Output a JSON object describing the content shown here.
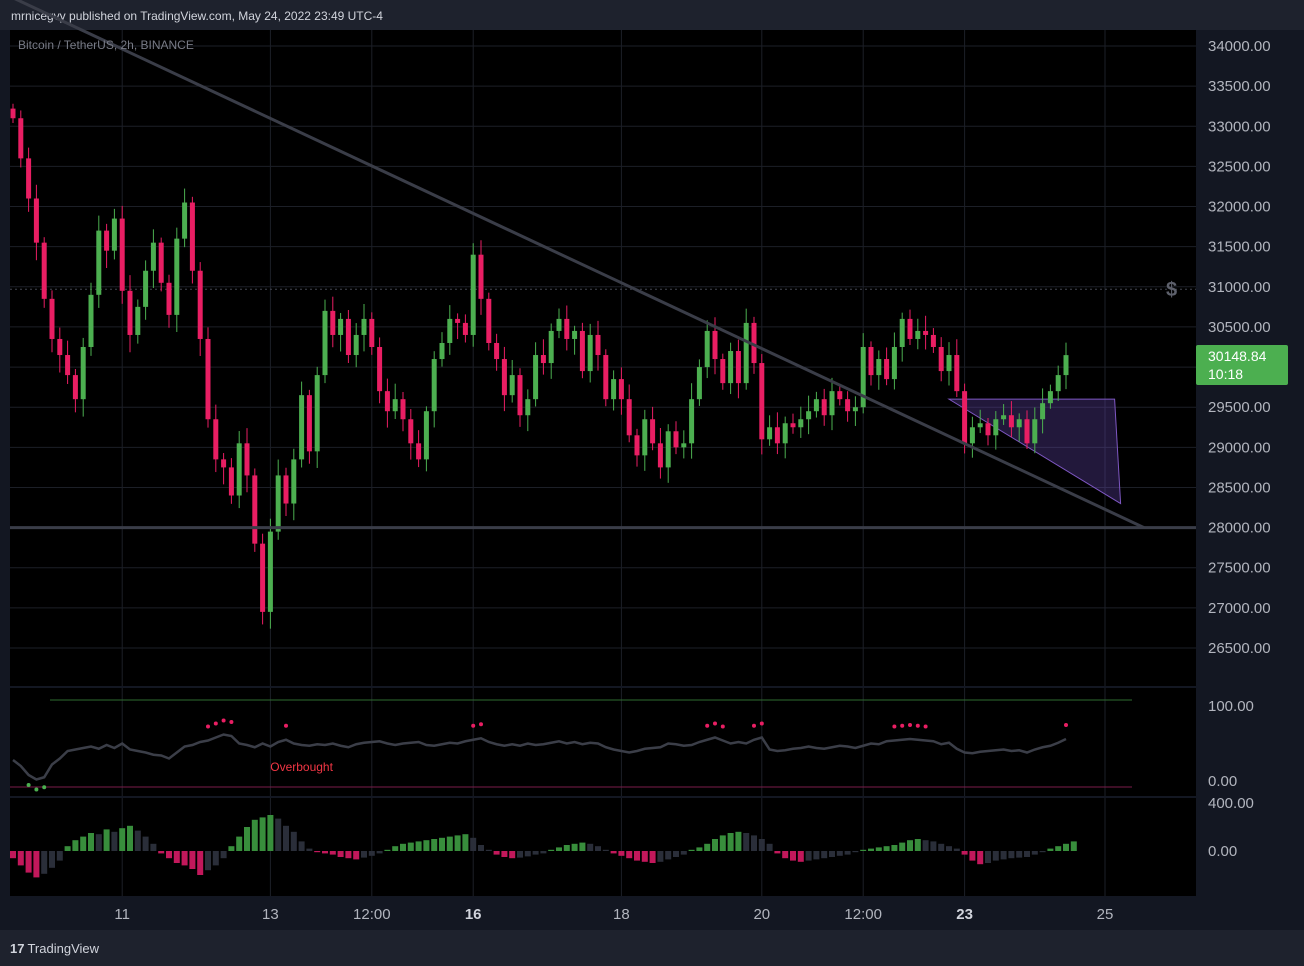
{
  "header": {
    "published_text": "mrnicegvy published on TradingView.com, May 24, 2022 23:49 UTC-4"
  },
  "symbol_label": "Bitcoin / TetherUS, 2h, BINANCE",
  "footer": {
    "brand": "TradingView"
  },
  "last_price": {
    "price": "30148.84",
    "countdown": "10:18"
  },
  "colors": {
    "up": "#4caf50",
    "down": "#e91e63",
    "line": "#2a2e39",
    "background": "#000000"
  },
  "icons": [
    "tradingview-logo-icon",
    "dollar-icon"
  ],
  "chart_data": [
    {
      "type": "candlestick",
      "title": "Bitcoin / TetherUS, 2h, BINANCE",
      "y_ticks": [
        "34000.00",
        "33500.00",
        "33000.00",
        "32500.00",
        "32000.00",
        "31500.00",
        "31000.00",
        "30500.00",
        "30000.00",
        "29500.00",
        "29000.00",
        "28500.00",
        "28000.00",
        "27500.00",
        "27000.00",
        "26500.00"
      ],
      "ylim": [
        26100,
        34300
      ],
      "x_ticks": [
        {
          "label": "11",
          "bar": 14,
          "bold": false
        },
        {
          "label": "13",
          "bar": 33,
          "bold": false
        },
        {
          "label": "12:00",
          "bar": 46,
          "bold": false
        },
        {
          "label": "16",
          "bar": 59,
          "bold": true
        },
        {
          "label": "18",
          "bar": 78,
          "bold": false
        },
        {
          "label": "20",
          "bar": 96,
          "bold": false
        },
        {
          "label": "12:00",
          "bar": 109,
          "bold": false
        },
        {
          "label": "23",
          "bar": 122,
          "bold": true
        },
        {
          "label": "25",
          "bar": 140,
          "bold": false
        }
      ],
      "grid": true,
      "candles_close": [
        33100,
        32600,
        32100,
        31550,
        30850,
        30350,
        30150,
        29900,
        29600,
        30250,
        30900,
        31700,
        31450,
        31850,
        30950,
        30400,
        30750,
        31200,
        31550,
        31050,
        30650,
        31600,
        32050,
        31200,
        30350,
        29350,
        28850,
        28750,
        28400,
        29050,
        28650,
        27800,
        26950,
        27950,
        28650,
        28300,
        28850,
        29650,
        28950,
        29900,
        30700,
        30400,
        30600,
        30150,
        30400,
        30600,
        30250,
        29700,
        29450,
        29600,
        29350,
        29050,
        28850,
        29450,
        30100,
        30300,
        30600,
        30550,
        30400,
        31400,
        30850,
        30300,
        30100,
        29650,
        29900,
        29400,
        29600,
        30150,
        30050,
        30450,
        30600,
        30350,
        30450,
        29950,
        30400,
        30150,
        29600,
        29850,
        29600,
        29150,
        28900,
        29350,
        29050,
        28750,
        29200,
        29000,
        29050,
        29600,
        30000,
        30450,
        30100,
        29800,
        30200,
        29800,
        30550,
        30050,
        29100,
        29250,
        29050,
        29300,
        29250,
        29350,
        29450,
        29600,
        29400,
        29700,
        29600,
        29450,
        29500,
        30250,
        29900,
        30100,
        29850,
        30250,
        30600,
        30350,
        30450,
        30400,
        30250,
        29950,
        30150,
        29700,
        29050,
        29250,
        29300,
        29150,
        29350,
        29400,
        29250,
        29350,
        29050,
        29350,
        29550,
        29700,
        29900,
        30148.84
      ],
      "support_level": 28000,
      "trendline": {
        "start": [
          0,
          34600
        ],
        "end": [
          145,
          28000
        ]
      },
      "wedge": {
        "start_bar": 120,
        "end_bar": 142,
        "top": 29600,
        "bottom": 28300
      },
      "dotted_level": 30970,
      "last_price": 30148.84
    },
    {
      "type": "line",
      "y_ticks": [
        "100.00",
        "0.00"
      ],
      "ylim": [
        -20,
        120
      ],
      "series": [
        {
          "values": [
            28,
            20,
            8,
            2,
            5,
            22,
            30,
            40,
            42,
            44,
            46,
            43,
            48,
            44,
            50,
            42,
            40,
            38,
            35,
            34,
            30,
            38,
            46,
            48,
            52,
            54,
            58,
            62,
            60,
            50,
            48,
            45,
            50,
            46,
            52,
            55,
            50,
            48,
            47,
            49,
            48,
            50,
            47,
            45,
            49,
            51,
            52,
            53,
            50,
            48,
            50,
            51,
            52,
            48,
            47,
            49,
            51,
            50,
            53,
            55,
            57,
            52,
            49,
            47,
            49,
            47,
            50,
            48,
            49,
            51,
            53,
            50,
            52,
            49,
            51,
            50,
            45,
            42,
            40,
            38,
            40,
            43,
            44,
            45,
            50,
            49,
            47,
            48,
            52,
            55,
            58,
            54,
            50,
            52,
            50,
            55,
            58,
            42,
            40,
            41,
            43,
            44,
            46,
            44,
            43,
            45,
            47,
            46,
            44,
            47,
            50,
            49,
            53,
            54,
            55,
            56,
            55,
            54,
            53,
            49,
            51,
            43,
            38,
            37,
            39,
            40,
            41,
            42,
            40,
            41,
            38,
            42,
            45,
            47,
            51,
            56
          ]
        }
      ],
      "overbought_label": "Overbought",
      "upper_level": 108,
      "lower_level": -8
    },
    {
      "type": "bar",
      "y_ticks": [
        "400.00",
        "0.00"
      ],
      "ylim": [
        -240,
        420
      ],
      "values": [
        -60,
        -120,
        -180,
        -220,
        -190,
        -140,
        -80,
        40,
        90,
        120,
        150,
        140,
        180,
        160,
        190,
        210,
        170,
        120,
        60,
        -20,
        -60,
        -100,
        -120,
        -150,
        -200,
        -160,
        -120,
        -60,
        40,
        120,
        200,
        260,
        280,
        300,
        270,
        210,
        160,
        80,
        20,
        -10,
        -20,
        -30,
        -50,
        -60,
        -70,
        -55,
        -40,
        -20,
        10,
        40,
        60,
        70,
        80,
        90,
        100,
        110,
        120,
        130,
        140,
        110,
        50,
        10,
        -30,
        -50,
        -60,
        -55,
        -45,
        -30,
        -20,
        10,
        30,
        50,
        60,
        70,
        60,
        40,
        10,
        -20,
        -40,
        -60,
        -80,
        -90,
        -100,
        -90,
        -70,
        -50,
        -30,
        10,
        30,
        60,
        100,
        130,
        150,
        160,
        150,
        130,
        100,
        60,
        -20,
        -60,
        -80,
        -90,
        -80,
        -70,
        -60,
        -50,
        -40,
        -30,
        -10,
        10,
        20,
        30,
        40,
        50,
        70,
        90,
        100,
        90,
        80,
        60,
        40,
        20,
        -30,
        -80,
        -110,
        -100,
        -80,
        -70,
        -60,
        -55,
        -50,
        -30,
        -10,
        20,
        40,
        60,
        80
      ]
    }
  ]
}
